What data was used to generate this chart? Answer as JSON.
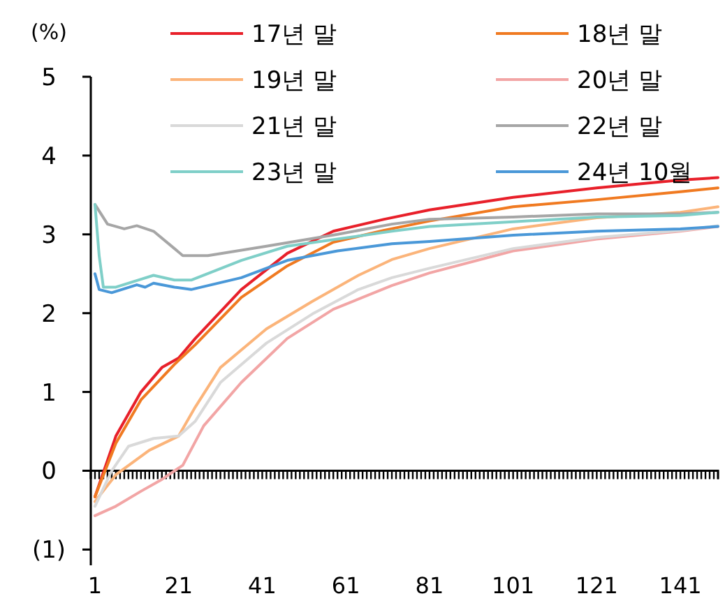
{
  "chart_data": {
    "type": "line",
    "ylabel": "(%)",
    "xlim": [
      0,
      150
    ],
    "ylim": [
      -1.2,
      5
    ],
    "yticks": [
      {
        "value": -1,
        "label": "(1)"
      },
      0,
      1,
      2,
      3,
      4,
      5
    ],
    "xticks": [
      1,
      {
        "value": 2,
        "label": null
      },
      {
        "value": 3,
        "label": null
      },
      {
        "value": 4,
        "label": null
      },
      {
        "value": 5,
        "label": null
      },
      {
        "value": 6,
        "label": null
      },
      {
        "value": 7,
        "label": null
      },
      {
        "value": 8,
        "label": null
      },
      {
        "value": 9,
        "label": null
      },
      {
        "value": 10,
        "label": null
      },
      {
        "value": 11,
        "label": null
      },
      {
        "value": 12,
        "label": null
      },
      {
        "value": 13,
        "label": null
      },
      {
        "value": 14,
        "label": null
      },
      {
        "value": 15,
        "label": null
      },
      {
        "value": 16,
        "label": null
      },
      {
        "value": 17,
        "label": null
      },
      {
        "value": 18,
        "label": null
      },
      {
        "value": 19,
        "label": null
      },
      {
        "value": 20,
        "label": null
      },
      21,
      {
        "value": 22,
        "label": null
      },
      {
        "value": 23,
        "label": null
      },
      {
        "value": 24,
        "label": null
      },
      {
        "value": 25,
        "label": null
      },
      {
        "value": 26,
        "label": null
      },
      {
        "value": 27,
        "label": null
      },
      {
        "value": 28,
        "label": null
      },
      {
        "value": 29,
        "label": null
      },
      {
        "value": 30,
        "label": null
      },
      {
        "value": 31,
        "label": null
      },
      {
        "value": 32,
        "label": null
      },
      {
        "value": 33,
        "label": null
      },
      {
        "value": 34,
        "label": null
      },
      {
        "value": 35,
        "label": null
      },
      {
        "value": 36,
        "label": null
      },
      {
        "value": 37,
        "label": null
      },
      {
        "value": 38,
        "label": null
      },
      {
        "value": 39,
        "label": null
      },
      {
        "value": 40,
        "label": null
      },
      41,
      {
        "value": 42,
        "label": null
      },
      {
        "value": 43,
        "label": null
      },
      {
        "value": 44,
        "label": null
      },
      {
        "value": 45,
        "label": null
      },
      {
        "value": 46,
        "label": null
      },
      {
        "value": 47,
        "label": null
      },
      {
        "value": 48,
        "label": null
      },
      {
        "value": 49,
        "label": null
      },
      {
        "value": 50,
        "label": null
      },
      {
        "value": 51,
        "label": null
      },
      {
        "value": 52,
        "label": null
      },
      {
        "value": 53,
        "label": null
      },
      {
        "value": 54,
        "label": null
      },
      {
        "value": 55,
        "label": null
      },
      {
        "value": 56,
        "label": null
      },
      {
        "value": 57,
        "label": null
      },
      {
        "value": 58,
        "label": null
      },
      {
        "value": 59,
        "label": null
      },
      {
        "value": 60,
        "label": null
      },
      61,
      {
        "value": 62,
        "label": null
      },
      {
        "value": 63,
        "label": null
      },
      {
        "value": 64,
        "label": null
      },
      {
        "value": 65,
        "label": null
      },
      {
        "value": 66,
        "label": null
      },
      {
        "value": 67,
        "label": null
      },
      {
        "value": 68,
        "label": null
      },
      {
        "value": 69,
        "label": null
      },
      {
        "value": 70,
        "label": null
      },
      {
        "value": 71,
        "label": null
      },
      {
        "value": 72,
        "label": null
      },
      {
        "value": 73,
        "label": null
      },
      {
        "value": 74,
        "label": null
      },
      {
        "value": 75,
        "label": null
      },
      {
        "value": 76,
        "label": null
      },
      {
        "value": 77,
        "label": null
      },
      {
        "value": 78,
        "label": null
      },
      {
        "value": 79,
        "label": null
      },
      {
        "value": 80,
        "label": null
      },
      81,
      {
        "value": 82,
        "label": null
      },
      {
        "value": 83,
        "label": null
      },
      {
        "value": 84,
        "label": null
      },
      {
        "value": 85,
        "label": null
      },
      {
        "value": 86,
        "label": null
      },
      {
        "value": 87,
        "label": null
      },
      {
        "value": 88,
        "label": null
      },
      {
        "value": 89,
        "label": null
      },
      {
        "value": 90,
        "label": null
      },
      {
        "value": 91,
        "label": null
      },
      {
        "value": 92,
        "label": null
      },
      {
        "value": 93,
        "label": null
      },
      {
        "value": 94,
        "label": null
      },
      {
        "value": 95,
        "label": null
      },
      {
        "value": 96,
        "label": null
      },
      {
        "value": 97,
        "label": null
      },
      {
        "value": 98,
        "label": null
      },
      {
        "value": 99,
        "label": null
      },
      {
        "value": 100,
        "label": null
      },
      101,
      {
        "value": 102,
        "label": null
      },
      {
        "value": 103,
        "label": null
      },
      {
        "value": 104,
        "label": null
      },
      {
        "value": 105,
        "label": null
      },
      {
        "value": 106,
        "label": null
      },
      {
        "value": 107,
        "label": null
      },
      {
        "value": 108,
        "label": null
      },
      {
        "value": 109,
        "label": null
      },
      {
        "value": 110,
        "label": null
      },
      {
        "value": 111,
        "label": null
      },
      {
        "value": 112,
        "label": null
      },
      {
        "value": 113,
        "label": null
      },
      {
        "value": 114,
        "label": null
      },
      {
        "value": 115,
        "label": null
      },
      {
        "value": 116,
        "label": null
      },
      {
        "value": 117,
        "label": null
      },
      {
        "value": 118,
        "label": null
      },
      {
        "value": 119,
        "label": null
      },
      {
        "value": 120,
        "label": null
      },
      121,
      {
        "value": 122,
        "label": null
      },
      {
        "value": 123,
        "label": null
      },
      {
        "value": 124,
        "label": null
      },
      {
        "value": 125,
        "label": null
      },
      {
        "value": 126,
        "label": null
      },
      {
        "value": 127,
        "label": null
      },
      {
        "value": 128,
        "label": null
      },
      {
        "value": 129,
        "label": null
      },
      {
        "value": 130,
        "label": null
      },
      {
        "value": 131,
        "label": null
      },
      {
        "value": 132,
        "label": null
      },
      {
        "value": 133,
        "label": null
      },
      {
        "value": 134,
        "label": null
      },
      {
        "value": 135,
        "label": null
      },
      {
        "value": 136,
        "label": null
      },
      {
        "value": 137,
        "label": null
      },
      {
        "value": 138,
        "label": null
      },
      {
        "value": 139,
        "label": null
      },
      {
        "value": 140,
        "label": null
      },
      141,
      {
        "value": 142,
        "label": null
      },
      {
        "value": 143,
        "label": null
      },
      {
        "value": 144,
        "label": null
      },
      {
        "value": 145,
        "label": null
      },
      {
        "value": 146,
        "label": null
      },
      {
        "value": 147,
        "label": null
      },
      {
        "value": 148,
        "label": null
      },
      {
        "value": 149,
        "label": null
      },
      {
        "value": 150,
        "label": null
      }
    ],
    "grid": false,
    "legend": "top right",
    "marker": "none",
    "line_style": "solid",
    "series": [
      {
        "name": "17년 말",
        "color": "#e8202a",
        "x": [
          1,
          6,
          12,
          17,
          21,
          25,
          36,
          47,
          58,
          70,
          81,
          101,
          121,
          141,
          150
        ],
        "values": [
          -0.33,
          0.44,
          1.0,
          1.31,
          1.43,
          1.68,
          2.3,
          2.76,
          3.04,
          3.19,
          3.31,
          3.47,
          3.59,
          3.69,
          3.72
        ]
      },
      {
        "name": "18년 말",
        "color": "#f07a21",
        "x": [
          1,
          6,
          12,
          20,
          25,
          36,
          47,
          58,
          70,
          81,
          101,
          121,
          141,
          150
        ],
        "values": [
          -0.33,
          0.35,
          0.9,
          1.35,
          1.6,
          2.2,
          2.6,
          2.9,
          3.05,
          3.17,
          3.35,
          3.44,
          3.54,
          3.59
        ]
      },
      {
        "name": "19년 말",
        "color": "#fbb47a",
        "x": [
          1,
          6,
          14,
          21,
          25,
          31,
          42,
          53,
          64,
          72,
          81,
          101,
          121,
          141,
          150
        ],
        "values": [
          -0.39,
          -0.05,
          0.26,
          0.44,
          0.81,
          1.31,
          1.8,
          2.15,
          2.48,
          2.68,
          2.82,
          3.07,
          3.21,
          3.28,
          3.35
        ]
      },
      {
        "name": "20년 말",
        "color": "#f2a5a5",
        "x": [
          1,
          6,
          12,
          17,
          22,
          27,
          36,
          47,
          58,
          72,
          81,
          101,
          121,
          141,
          150
        ],
        "values": [
          -0.57,
          -0.45,
          -0.26,
          -0.11,
          0.07,
          0.57,
          1.12,
          1.68,
          2.05,
          2.35,
          2.51,
          2.79,
          2.94,
          3.04,
          3.1
        ]
      },
      {
        "name": "21년 말",
        "color": "#d9d9d9",
        "x": [
          1,
          5,
          9,
          15,
          21,
          25,
          31,
          42,
          53,
          64,
          72,
          81,
          101,
          121,
          141,
          150
        ],
        "values": [
          -0.45,
          0.0,
          0.31,
          0.41,
          0.44,
          0.63,
          1.12,
          1.62,
          1.99,
          2.3,
          2.45,
          2.57,
          2.82,
          2.96,
          3.05,
          3.11
        ]
      },
      {
        "name": "22년 말",
        "color": "#a6a6a6",
        "x": [
          1,
          4,
          8,
          11,
          15,
          20,
          22,
          28,
          42,
          59,
          72,
          81,
          101,
          121,
          141,
          150
        ],
        "values": [
          3.38,
          3.13,
          3.07,
          3.11,
          3.04,
          2.82,
          2.73,
          2.73,
          2.85,
          3.0,
          3.13,
          3.19,
          3.22,
          3.26,
          3.26,
          3.28
        ]
      },
      {
        "name": "23년 말",
        "color": "#7fcfc8",
        "x": [
          1,
          2,
          3,
          6,
          12,
          15,
          20,
          24,
          36,
          47,
          59,
          72,
          81,
          101,
          121,
          141,
          150
        ],
        "values": [
          3.38,
          2.73,
          2.33,
          2.33,
          2.43,
          2.48,
          2.42,
          2.42,
          2.67,
          2.85,
          2.94,
          3.04,
          3.1,
          3.16,
          3.22,
          3.24,
          3.28
        ]
      },
      {
        "name": "24년 10월",
        "color": "#4a98d8",
        "x": [
          1,
          2,
          5,
          11,
          13,
          15,
          20,
          24,
          36,
          47,
          59,
          72,
          81,
          101,
          121,
          141,
          150
        ],
        "values": [
          2.5,
          2.3,
          2.26,
          2.36,
          2.33,
          2.38,
          2.33,
          2.3,
          2.45,
          2.67,
          2.79,
          2.88,
          2.91,
          2.99,
          3.04,
          3.07,
          3.1
        ]
      }
    ]
  }
}
